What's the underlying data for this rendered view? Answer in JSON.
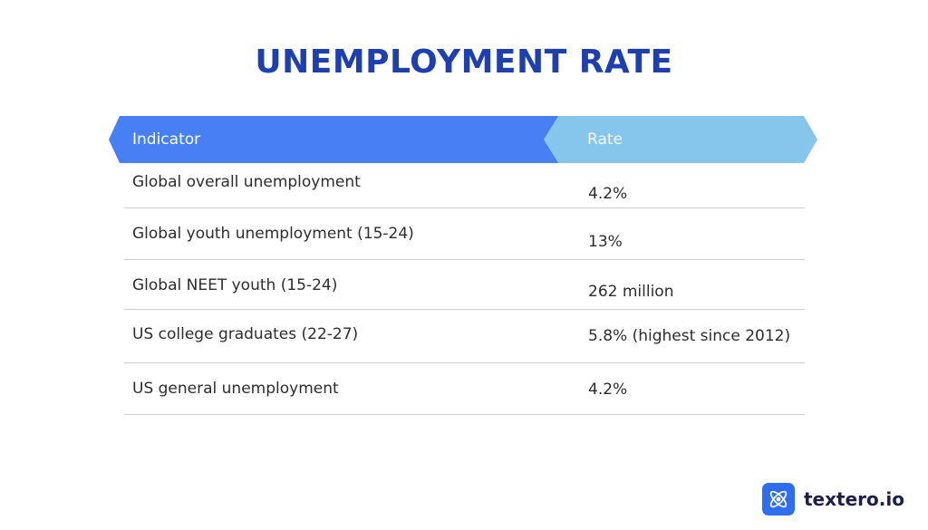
{
  "title": "UNEMPLOYMENT RATE",
  "table": {
    "headers": [
      "Indicator",
      "Rate"
    ],
    "rows": [
      [
        "Global overall unemployment",
        "4.2%"
      ],
      [
        "Global youth unemployment (15-24)",
        "13%"
      ],
      [
        "Global NEET youth (15-24)",
        "262 million"
      ],
      [
        "US college graduates (22-27)",
        "5.8% (highest since 2012)"
      ],
      [
        "US general unemployment",
        "4.2%"
      ]
    ]
  },
  "brand": {
    "name": "textero.io",
    "icon": "atom-icon"
  },
  "colors": {
    "title": "#1e3faf",
    "header_left": "#4680f3",
    "header_right": "#86c5ec",
    "logo_bg": "#2e6df0"
  }
}
